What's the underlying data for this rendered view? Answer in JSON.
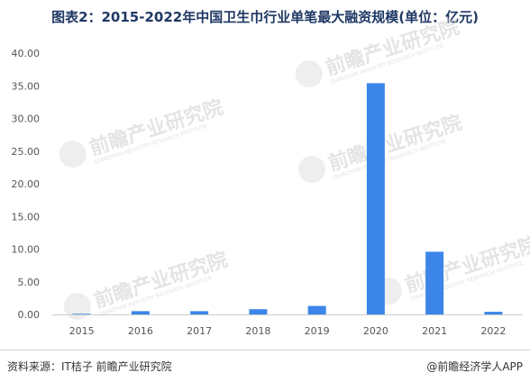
{
  "title": "图表2：2015-2022年中国卫生巾行业单笔最大融资规模(单位：亿元)",
  "source": "资料来源：IT桔子 前瞻产业研究院",
  "credit": "@前瞻经济学人APP",
  "watermark": {
    "brand": "前瞻产业研究院",
    "sub": "QIANZHAN INDUSTRY RESEARCH INSTITUTE"
  },
  "colors": {
    "bar": "#3b86e8",
    "axis": "#cccccc",
    "title": "#1f3864"
  },
  "chart_data": {
    "type": "bar",
    "title": "图表2：2015-2022年中国卫生巾行业单笔最大融资规模(单位：亿元)",
    "xlabel": "",
    "ylabel": "",
    "unit": "亿元",
    "categories": [
      "2015",
      "2016",
      "2017",
      "2018",
      "2019",
      "2020",
      "2021",
      "2022"
    ],
    "values": [
      0.1,
      0.5,
      0.5,
      0.8,
      1.3,
      35.4,
      9.6,
      0.4
    ],
    "ylim": [
      0,
      40
    ],
    "yticks": [
      "0.00",
      "5.00",
      "10.00",
      "15.00",
      "20.00",
      "25.00",
      "30.00",
      "35.00",
      "40.00"
    ],
    "grid": false,
    "legend": "none"
  }
}
